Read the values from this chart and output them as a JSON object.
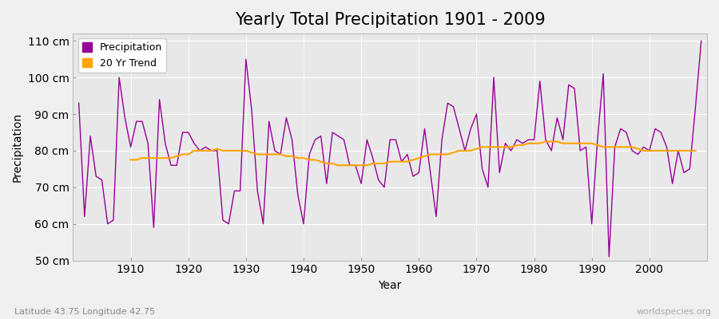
{
  "title": "Yearly Total Precipitation 1901 - 2009",
  "xlabel": "Year",
  "ylabel": "Precipitation",
  "subtitle": "Latitude 43.75 Longitude 42.75",
  "watermark": "worldspecies.org",
  "ylim": [
    50,
    112
  ],
  "yticks": [
    50,
    60,
    70,
    80,
    90,
    100,
    110
  ],
  "ytick_labels": [
    "50 cm",
    "60 cm",
    "70 cm",
    "80 cm",
    "90 cm",
    "100 cm",
    "110 cm"
  ],
  "years": [
    1901,
    1902,
    1903,
    1904,
    1905,
    1906,
    1907,
    1908,
    1909,
    1910,
    1911,
    1912,
    1913,
    1914,
    1915,
    1916,
    1917,
    1918,
    1919,
    1920,
    1921,
    1922,
    1923,
    1924,
    1925,
    1926,
    1927,
    1928,
    1929,
    1930,
    1931,
    1932,
    1933,
    1934,
    1935,
    1936,
    1937,
    1938,
    1939,
    1940,
    1941,
    1942,
    1943,
    1944,
    1945,
    1946,
    1947,
    1948,
    1949,
    1950,
    1951,
    1952,
    1953,
    1954,
    1955,
    1956,
    1957,
    1958,
    1959,
    1960,
    1961,
    1962,
    1963,
    1964,
    1965,
    1966,
    1967,
    1968,
    1969,
    1970,
    1971,
    1972,
    1973,
    1974,
    1975,
    1976,
    1977,
    1978,
    1979,
    1980,
    1981,
    1982,
    1983,
    1984,
    1985,
    1986,
    1987,
    1988,
    1989,
    1990,
    1991,
    1992,
    1993,
    1994,
    1995,
    1996,
    1997,
    1998,
    1999,
    2000,
    2001,
    2002,
    2003,
    2004,
    2005,
    2006,
    2007,
    2008,
    2009
  ],
  "precipitation": [
    93,
    62,
    84,
    73,
    72,
    60,
    61,
    100,
    89,
    81,
    88,
    88,
    82,
    59,
    94,
    82,
    76,
    76,
    85,
    85,
    82,
    80,
    81,
    80,
    80,
    61,
    60,
    69,
    69,
    105,
    91,
    69,
    60,
    88,
    80,
    79,
    89,
    83,
    68,
    60,
    79,
    83,
    84,
    71,
    85,
    84,
    83,
    76,
    76,
    71,
    83,
    78,
    72,
    70,
    83,
    83,
    77,
    79,
    73,
    74,
    86,
    74,
    62,
    83,
    93,
    92,
    86,
    80,
    86,
    90,
    75,
    70,
    100,
    74,
    82,
    80,
    83,
    82,
    83,
    83,
    99,
    83,
    80,
    89,
    83,
    98,
    97,
    80,
    81,
    60,
    83,
    101,
    51,
    81,
    86,
    85,
    80,
    79,
    81,
    80,
    86,
    85,
    81,
    71,
    80,
    74,
    75,
    92,
    110
  ],
  "trend": [
    null,
    null,
    null,
    null,
    null,
    null,
    null,
    null,
    null,
    77.5,
    77.5,
    78,
    78,
    78,
    78,
    78,
    78,
    78.5,
    79,
    79,
    80,
    80,
    80,
    80,
    80.5,
    80,
    80,
    80,
    80,
    80,
    79.5,
    79,
    79,
    79,
    79,
    79,
    78.5,
    78.5,
    78,
    78,
    77.5,
    77.5,
    77,
    76.5,
    76.5,
    76,
    76,
    76,
    76,
    76,
    76,
    76.5,
    76.5,
    76.5,
    77,
    77,
    77,
    77,
    77.5,
    78,
    78.5,
    79,
    79,
    79,
    79,
    79.5,
    80,
    80,
    80,
    80.5,
    81,
    81,
    81,
    81,
    81,
    81,
    81.5,
    81.5,
    82,
    82,
    82,
    82.5,
    82.5,
    82.5,
    82,
    82,
    82,
    82,
    82,
    82,
    81.5,
    81,
    81,
    81,
    81,
    81,
    81,
    80.5,
    80,
    80,
    80,
    80,
    80,
    80,
    80,
    80,
    80,
    80
  ],
  "precip_color": "#990099",
  "trend_color": "#FFA500",
  "bg_color": "#F0F0F0",
  "plot_bg_color": "#E8E8E8",
  "grid_color": "#FFFFFF",
  "title_fontsize": 15,
  "axis_fontsize": 10,
  "label_fontsize": 10,
  "legend_fontsize": 9,
  "fig_width": 9.0,
  "fig_height": 4.0,
  "dpi": 100
}
